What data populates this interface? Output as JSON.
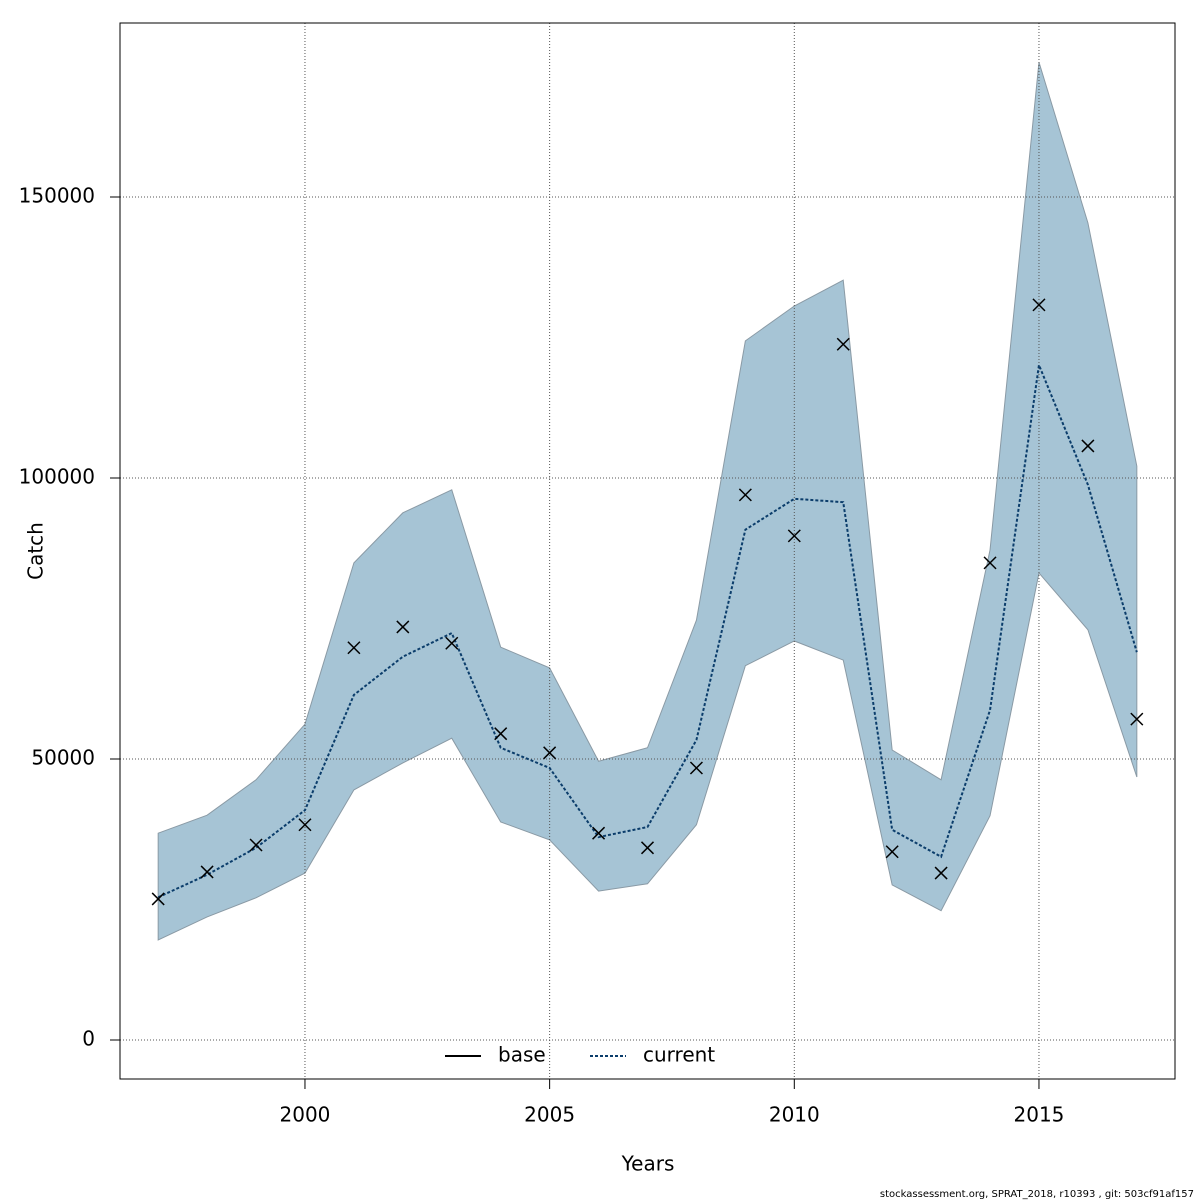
{
  "chart_data": {
    "type": "line",
    "xlabel": "Years",
    "ylabel": "Catch",
    "x": [
      1997,
      1998,
      1999,
      2000,
      2001,
      2002,
      2003,
      2004,
      2005,
      2006,
      2007,
      2008,
      2009,
      2010,
      2011,
      2012,
      2013,
      2014,
      2015,
      2016,
      2017
    ],
    "series": [
      {
        "name": "current",
        "color": "#0b3d6b",
        "dash": "dotted",
        "values": [
          25400,
          29400,
          34200,
          40900,
          61400,
          68200,
          72400,
          52000,
          48400,
          36100,
          37900,
          53400,
          90800,
          96300,
          95700,
          37400,
          32600,
          58700,
          120100,
          98800,
          69000
        ]
      }
    ],
    "observations": {
      "color": "#000000",
      "values": [
        25100,
        29900,
        34700,
        38300,
        69800,
        73500,
        70600,
        54500,
        51100,
        36800,
        34200,
        48400,
        97000,
        89700,
        123800,
        33500,
        29700,
        84900,
        130800,
        105700,
        57100
      ]
    },
    "band": {
      "color": "#a6c4d5",
      "edge": "#8a9aa5",
      "upper": [
        36800,
        40000,
        46300,
        56200,
        84900,
        93800,
        97900,
        69900,
        66200,
        49600,
        52000,
        74700,
        124400,
        130600,
        135200,
        51600,
        46300,
        87200,
        174000,
        145400,
        102100
      ],
      "lower": [
        17800,
        21900,
        25300,
        29700,
        44500,
        49300,
        53700,
        38800,
        35600,
        26500,
        27800,
        38300,
        66600,
        71000,
        67600,
        27600,
        23000,
        39900,
        83100,
        73000,
        46800
      ]
    },
    "legend": [
      {
        "name": "base",
        "color": "#000000",
        "dash": "solid"
      },
      {
        "name": "current",
        "color": "#0b3d6b",
        "dash": "dotted"
      }
    ],
    "xlim": [
      1996.22,
      2017.78
    ],
    "ylim": [
      -6940,
      180960
    ],
    "xticks": [
      2000,
      2005,
      2010,
      2015
    ],
    "yticks": [
      0,
      50000,
      100000,
      150000
    ],
    "grid": true,
    "footer": "stockassessment.org, SPRAT_2018, r10393 , git: 503cf91af157"
  }
}
